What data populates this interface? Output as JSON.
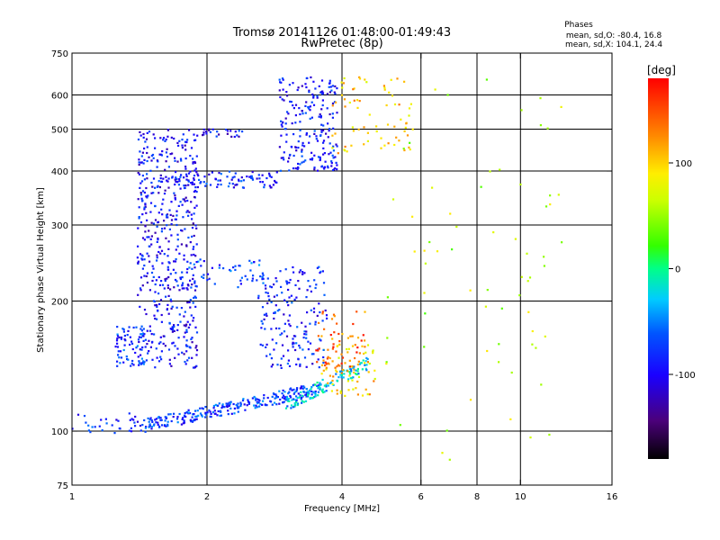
{
  "chart_data": {
    "type": "scatter",
    "title": "Tromsø 20141126 01:48:00-01:49:43",
    "subtitle": "RwPretec (8p)",
    "xlabel": "Frequency [MHz]",
    "ylabel": "Stationary phase Virtual Height [km]",
    "x_scale": "log",
    "y_scale": "log",
    "xlim": [
      1,
      16
    ],
    "ylim": [
      75,
      750
    ],
    "x_ticks": [
      1,
      2,
      4,
      6,
      8,
      10,
      16
    ],
    "x_tick_labels": [
      "1",
      "2",
      "4",
      "6",
      "8",
      "10",
      "16"
    ],
    "y_ticks": [
      75,
      100,
      200,
      300,
      400,
      500,
      600,
      750
    ],
    "y_tick_labels": [
      "75",
      "100",
      "200",
      "300",
      "400",
      "500",
      "600",
      "750"
    ],
    "x_gridlines": [
      2,
      4,
      6,
      8,
      10
    ],
    "y_gridlines": [
      100,
      200,
      300,
      400,
      500,
      600
    ],
    "grid": true,
    "phase_stats": {
      "title": "Phases",
      "line_o": "mean, sd,O: -80.4, 16.8",
      "line_x": "mean, sd,X: 104.1, 24.4"
    },
    "colorbar": {
      "label": "[deg]",
      "range": [
        -180,
        180
      ],
      "ticks": [
        100,
        0,
        -100
      ],
      "tick_labels": [
        "100",
        "0",
        "-100"
      ],
      "colormap": "rainbow (black-purple-blue-cyan-green-yellow-red)"
    },
    "clusters": [
      {
        "region": "low-frequency E trace",
        "x_range": [
          1.0,
          1.45
        ],
        "y_range": [
          98,
          110
        ],
        "phase": -80,
        "n": 35
      },
      {
        "region": "ordinary F trace lower branch",
        "x_range": [
          1.45,
          3.6
        ],
        "y_range": [
          103,
          130
        ],
        "phase": -75,
        "n": 260
      },
      {
        "region": "ordinary F trace upper branch",
        "x_range": [
          3.0,
          4.6
        ],
        "y_range": [
          115,
          150
        ],
        "phase": -30,
        "n": 120
      },
      {
        "region": "extraordinary low trace",
        "x_range": [
          3.6,
          4.8
        ],
        "y_range": [
          120,
          160
        ],
        "phase": 100,
        "n": 70
      },
      {
        "region": "spread F column",
        "x_range": [
          1.4,
          1.9
        ],
        "y_range": [
          140,
          500
        ],
        "phase": -95,
        "n": 520
      },
      {
        "region": "spread F column",
        "x_range": [
          1.25,
          1.45
        ],
        "y_range": [
          140,
          175
        ],
        "phase": -80,
        "n": 70
      },
      {
        "region": "horizontal band ~380 km",
        "x_range": [
          1.7,
          2.9
        ],
        "y_range": [
          365,
          400
        ],
        "phase": -85,
        "n": 90
      },
      {
        "region": "horizontal band ~490 km",
        "x_range": [
          1.9,
          2.4
        ],
        "y_range": [
          480,
          500
        ],
        "phase": -95,
        "n": 25
      },
      {
        "region": "spread F (mid)",
        "x_range": [
          1.8,
          2.7
        ],
        "y_range": [
          215,
          250
        ],
        "phase": -70,
        "n": 55
      },
      {
        "region": "spread F (mid)",
        "x_range": [
          2.6,
          3.7
        ],
        "y_range": [
          140,
          240
        ],
        "phase": -85,
        "n": 170
      },
      {
        "region": "upper F trace",
        "x_range": [
          2.9,
          3.9
        ],
        "y_range": [
          400,
          660
        ],
        "phase": -90,
        "n": 210
      },
      {
        "region": "upper F trace X",
        "x_range": [
          3.8,
          5.7
        ],
        "y_range": [
          440,
          660
        ],
        "phase": 100,
        "n": 70
      },
      {
        "region": "extraordinary spread",
        "x_range": [
          3.5,
          4.5
        ],
        "y_range": [
          140,
          190
        ],
        "phase": 140,
        "n": 55
      },
      {
        "region": "scattered high frequency",
        "x_range": [
          5.0,
          12.5
        ],
        "y_range": [
          85,
          660
        ],
        "phase": 60,
        "n": 70
      }
    ]
  }
}
